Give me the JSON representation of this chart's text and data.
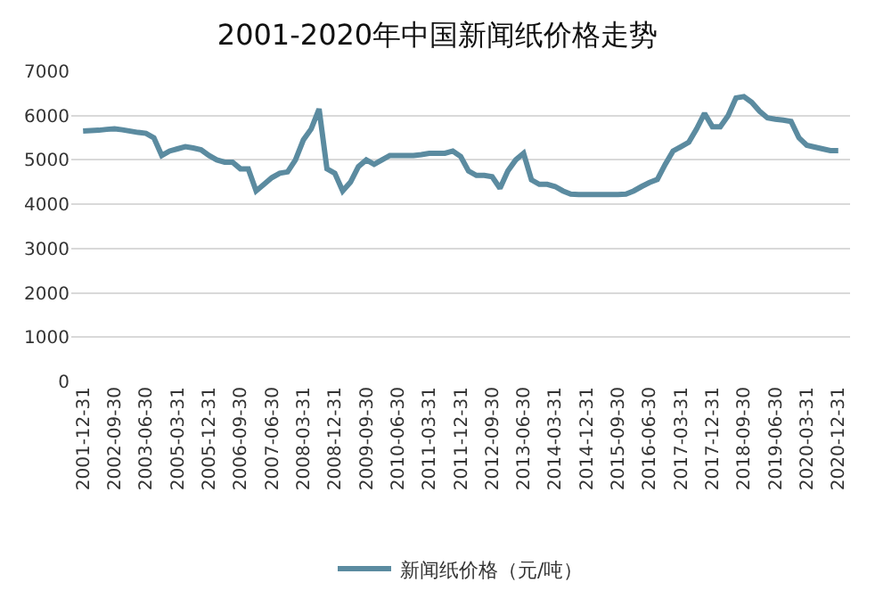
{
  "chart_data": {
    "type": "line",
    "title": "2001-2020年中国新闻纸价格走势",
    "categories": [
      "2001-12-31",
      null,
      null,
      null,
      "2002-09-30",
      null,
      null,
      null,
      "2003-06-30",
      null,
      null,
      null,
      "2005-03-31",
      null,
      null,
      null,
      "2005-12-31",
      null,
      null,
      null,
      "2006-09-30",
      null,
      null,
      null,
      "2007-06-30",
      null,
      null,
      null,
      "2008-03-31",
      null,
      null,
      null,
      "2008-12-31",
      null,
      null,
      null,
      "2009-09-30",
      null,
      null,
      null,
      "2010-06-30",
      null,
      null,
      null,
      "2011-03-31",
      null,
      null,
      null,
      "2011-12-31",
      null,
      null,
      null,
      "2012-09-30",
      null,
      null,
      null,
      "2013-06-30",
      null,
      null,
      null,
      "2014-03-31",
      null,
      null,
      null,
      "2014-12-31",
      null,
      null,
      null,
      "2015-09-30",
      null,
      null,
      null,
      "2016-06-30",
      null,
      null,
      null,
      "2017-03-31",
      null,
      null,
      null,
      "2017-12-31",
      null,
      null,
      null,
      "2018-09-30",
      null,
      null,
      null,
      "2019-06-30",
      null,
      null,
      null,
      "2020-03-31",
      null,
      null,
      null,
      "2020-12-31"
    ],
    "series": [
      {
        "name": "新闻纸价格（元/吨）",
        "color": "#5b8ba0",
        "values": [
          5650,
          5660,
          5670,
          5690,
          5700,
          5680,
          5650,
          5620,
          5600,
          5500,
          5100,
          5200,
          5250,
          5300,
          5270,
          5230,
          5100,
          5000,
          4950,
          4950,
          4800,
          4800,
          4300,
          4450,
          4600,
          4700,
          4730,
          5000,
          5450,
          5700,
          6150,
          4800,
          4700,
          4300,
          4500,
          4850,
          5000,
          4900,
          5000,
          5100,
          5100,
          5100,
          5100,
          5120,
          5150,
          5150,
          5150,
          5200,
          5080,
          4750,
          4650,
          4650,
          4620,
          4360,
          4750,
          5000,
          5150,
          4550,
          4450,
          4450,
          4400,
          4300,
          4230,
          4220,
          4220,
          4220,
          4220,
          4220,
          4220,
          4230,
          4300,
          4400,
          4490,
          4560,
          4900,
          5200,
          5300,
          5400,
          5700,
          6050,
          5750,
          5750,
          6000,
          6400,
          6430,
          6300,
          6100,
          5950,
          5920,
          5900,
          5870,
          5500,
          5330,
          5290,
          5250,
          5210,
          5210
        ]
      }
    ],
    "ylim": [
      0,
      7000
    ],
    "yticks": [
      0,
      1000,
      2000,
      3000,
      4000,
      5000,
      6000,
      7000
    ],
    "grid": "y",
    "legend": "bottom",
    "marker": "none",
    "line_style": "solid"
  }
}
